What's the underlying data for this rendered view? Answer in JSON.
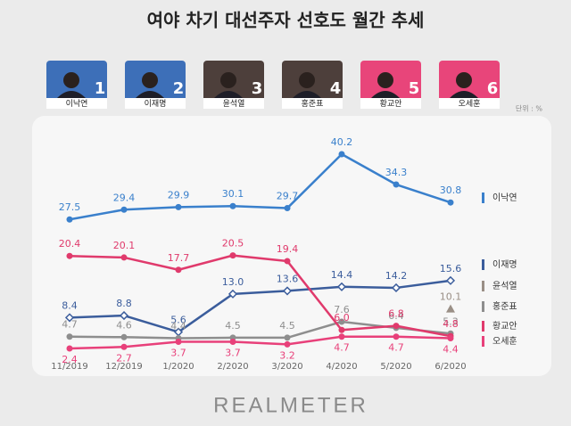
{
  "chart_data": {
    "type": "line",
    "title": "여야 차기 대선주자 선호도 월간 추세",
    "unit": "단위 : %",
    "footer": "REALMETER",
    "portraits": [
      {
        "name": "이낙연",
        "rank": 1,
        "color": "#3d6fb8"
      },
      {
        "name": "이재명",
        "rank": 2,
        "color": "#3d6fb8"
      },
      {
        "name": "윤석열",
        "rank": 3,
        "color": "#4d3f3b"
      },
      {
        "name": "홍준표",
        "rank": 4,
        "color": "#4d3f3b"
      },
      {
        "name": "황교안",
        "rank": 5,
        "color": "#e8457a"
      },
      {
        "name": "오세훈",
        "rank": 6,
        "color": "#e8457a"
      }
    ],
    "categories": [
      "11/2019",
      "12/2019",
      "1/2020",
      "2/2020",
      "3/2020",
      "4/2020",
      "5/2020",
      "6/2020"
    ],
    "series": [
      {
        "name": "이낙연",
        "color": "#3a80cc",
        "values": [
          27.5,
          29.4,
          29.9,
          30.1,
          29.7,
          40.2,
          34.3,
          30.8
        ]
      },
      {
        "name": "이재명",
        "color": "#3b5d9c",
        "values": [
          8.4,
          8.8,
          5.6,
          13.0,
          13.6,
          14.4,
          14.2,
          15.6
        ],
        "value_labels": [
          "8.4",
          "8.8",
          "5.6",
          "13.0",
          "13.6",
          "14.4",
          "14.2",
          "15.6"
        ]
      },
      {
        "name": "윤석열",
        "color": "#9a8f86",
        "values": [
          null,
          null,
          null,
          null,
          null,
          null,
          null,
          10.1
        ]
      },
      {
        "name": "홍준표",
        "color": "#8e8e8e",
        "values": [
          4.7,
          4.6,
          4.4,
          4.5,
          4.5,
          7.6,
          6.4,
          5.3
        ]
      },
      {
        "name": "황교안",
        "color": "#e03a6c",
        "values": [
          20.4,
          20.1,
          17.7,
          20.5,
          19.4,
          6.0,
          6.8,
          4.8
        ],
        "value_labels": [
          "20.4",
          "20.1",
          "17.7",
          "20.5",
          "19.4",
          "6.0",
          "6.8",
          "4.8"
        ]
      },
      {
        "name": "오세훈",
        "color": "#e8407a",
        "values": [
          2.4,
          2.7,
          3.7,
          3.7,
          3.2,
          4.7,
          4.7,
          4.4
        ]
      }
    ]
  }
}
